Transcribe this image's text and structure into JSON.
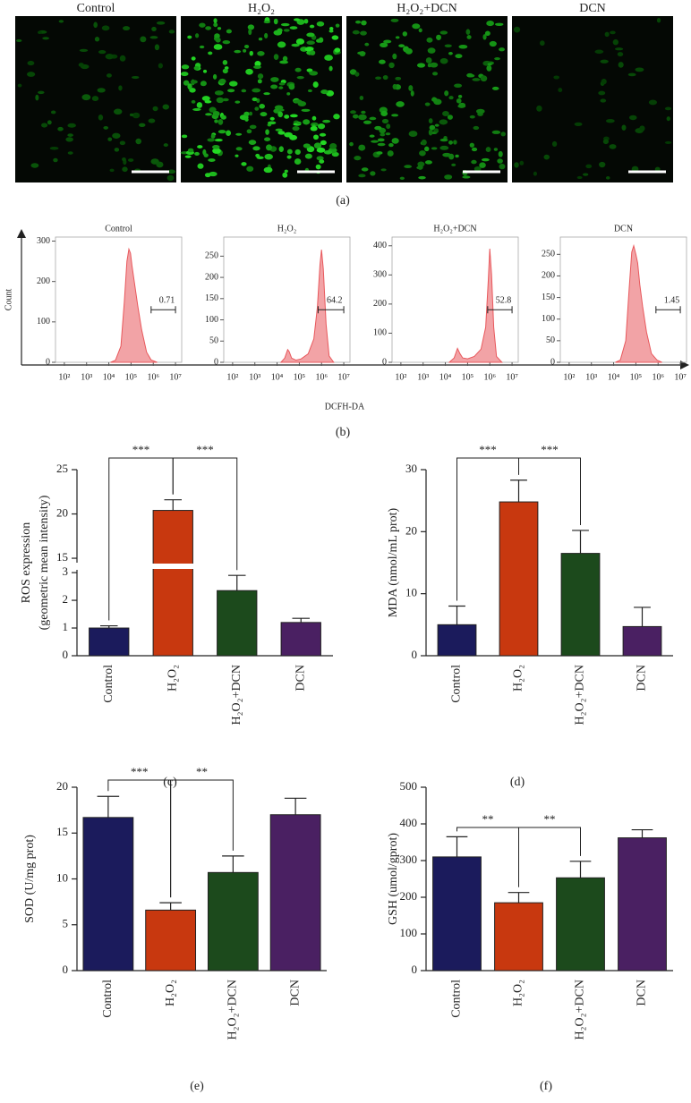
{
  "panel_labels": [
    "(a)",
    "(b)",
    "(c)",
    "(d)",
    "(e)",
    "(f)"
  ],
  "images": [
    {
      "title": "Control"
    },
    {
      "title": "H₂O₂"
    },
    {
      "title": "H₂O₂+DCN"
    },
    {
      "title": "DCN"
    }
  ],
  "flow_axes": {
    "y_label": "Count",
    "x_label": "DCFH-DA"
  },
  "chart_data": [
    {
      "type": "area",
      "title": "Control",
      "log_x": true,
      "xlim": [
        40,
        19000000
      ],
      "xticks": [
        {
          "value": 100,
          "label": "10²"
        },
        {
          "value": 1000,
          "label": "10³"
        },
        {
          "value": 10000,
          "label": "10⁴"
        },
        {
          "value": 100000,
          "label": "10⁵"
        },
        {
          "value": 1000000,
          "label": "10⁶"
        },
        {
          "value": 10000000,
          "label": "10⁷"
        }
      ],
      "ylim": [
        0,
        310
      ],
      "yticks": [
        0,
        100,
        200,
        300
      ],
      "color": "#e8585c",
      "x": [
        12000,
        20000,
        35000,
        50000,
        65000,
        80000,
        95000,
        110000,
        140000,
        200000,
        300000,
        500000,
        800000,
        1500000
      ],
      "values": [
        0,
        5,
        40,
        150,
        250,
        280,
        270,
        240,
        200,
        140,
        80,
        25,
        6,
        0
      ],
      "gate": [
        800000,
        10000000
      ],
      "gate_value": 0.71
    },
    {
      "type": "area",
      "title": "H₂O₂",
      "log_x": true,
      "xlim": [
        40,
        19000000
      ],
      "xticks": [
        {
          "value": 100,
          "label": "10²"
        },
        {
          "value": 1000,
          "label": "10³"
        },
        {
          "value": 10000,
          "label": "10⁴"
        },
        {
          "value": 100000,
          "label": "10⁵"
        },
        {
          "value": 1000000,
          "label": "10⁶"
        },
        {
          "value": 10000000,
          "label": "10⁷"
        }
      ],
      "ylim": [
        0,
        295
      ],
      "yticks": [
        0,
        50,
        100,
        150,
        200,
        250
      ],
      "color": "#e8585c",
      "x": [
        15000,
        22000,
        30000,
        35000,
        45000,
        70000,
        120000,
        250000,
        450000,
        650000,
        850000,
        1000000,
        1200000,
        1600000,
        2200000,
        3500000
      ],
      "values": [
        0,
        10,
        30,
        25,
        10,
        5,
        8,
        20,
        55,
        130,
        230,
        265,
        220,
        90,
        15,
        0
      ],
      "gate": [
        700000,
        10000000
      ],
      "gate_value": 64.2
    },
    {
      "type": "area",
      "title": "H₂O₂+DCN",
      "log_x": true,
      "xlim": [
        40,
        19000000
      ],
      "xticks": [
        {
          "value": 100,
          "label": "10²"
        },
        {
          "value": 1000,
          "label": "10³"
        },
        {
          "value": 10000,
          "label": "10⁴"
        },
        {
          "value": 100000,
          "label": "10⁵"
        },
        {
          "value": 1000000,
          "label": "10⁶"
        },
        {
          "value": 10000000,
          "label": "10⁷"
        }
      ],
      "ylim": [
        0,
        430
      ],
      "yticks": [
        0,
        100,
        200,
        300,
        400
      ],
      "color": "#e8585c",
      "x": [
        15000,
        25000,
        35000,
        45000,
        60000,
        100000,
        200000,
        400000,
        650000,
        850000,
        1000000,
        1200000,
        1500000,
        2000000,
        3500000
      ],
      "values": [
        0,
        15,
        48,
        30,
        15,
        12,
        20,
        45,
        120,
        280,
        390,
        300,
        120,
        20,
        0
      ],
      "gate": [
        800000,
        10000000
      ],
      "gate_value": 52.8
    },
    {
      "type": "area",
      "title": "DCN",
      "log_x": true,
      "xlim": [
        40,
        19000000
      ],
      "xticks": [
        {
          "value": 100,
          "label": "10²"
        },
        {
          "value": 1000,
          "label": "10³"
        },
        {
          "value": 10000,
          "label": "10⁴"
        },
        {
          "value": 100000,
          "label": "10⁵"
        },
        {
          "value": 1000000,
          "label": "10⁶"
        },
        {
          "value": 10000000,
          "label": "10⁷"
        }
      ],
      "ylim": [
        0,
        290
      ],
      "yticks": [
        0,
        50,
        100,
        150,
        200,
        250
      ],
      "color": "#e8585c",
      "x": [
        12000,
        20000,
        35000,
        50000,
        65000,
        80000,
        100000,
        120000,
        150000,
        200000,
        300000,
        500000,
        900000,
        1500000
      ],
      "values": [
        0,
        5,
        50,
        170,
        255,
        270,
        250,
        230,
        180,
        130,
        70,
        20,
        5,
        0
      ],
      "gate": [
        800000,
        10000000
      ],
      "gate_value": 1.45
    },
    {
      "type": "bar",
      "y_label": [
        "ROS expression",
        "(geometric mean intensity)"
      ],
      "categories": [
        "Control",
        "H₂O₂",
        "H₂O₂+DCN",
        "DCN"
      ],
      "values": [
        1.0,
        20.4,
        2.35,
        1.2
      ],
      "errors": [
        0.08,
        1.2,
        0.55,
        0.15
      ],
      "colors": [
        "#1b1b5c",
        "#c8380f",
        "#1c4a1c",
        "#4a2062"
      ],
      "ylim": [
        0,
        25
      ],
      "ybreak": [
        3.1,
        14.5
      ],
      "yticks": [
        0,
        1,
        2,
        3,
        15,
        20,
        25
      ],
      "significance": [
        {
          "pair": [
            "Control",
            "H₂O₂"
          ],
          "label": "***"
        },
        {
          "pair": [
            "H₂O₂",
            "H₂O₂+DCN"
          ],
          "label": "***"
        }
      ]
    },
    {
      "type": "bar",
      "y_label": [
        "MDA (nmol/mL prot)"
      ],
      "categories": [
        "Control",
        "H₂O₂",
        "H₂O₂+DCN",
        "DCN"
      ],
      "values": [
        5.0,
        24.8,
        16.5,
        4.7
      ],
      "errors": [
        3.0,
        3.5,
        3.7,
        3.1
      ],
      "colors": [
        "#1b1b5c",
        "#c8380f",
        "#1c4a1c",
        "#4a2062"
      ],
      "ylim": [
        0,
        30
      ],
      "yticks": [
        0,
        10,
        20,
        30
      ],
      "significance": [
        {
          "pair": [
            "Control",
            "H₂O₂"
          ],
          "label": "***"
        },
        {
          "pair": [
            "H₂O₂",
            "H₂O₂+DCN"
          ],
          "label": "***"
        }
      ]
    },
    {
      "type": "bar",
      "y_label": [
        "SOD (U/mg prot)"
      ],
      "categories": [
        "Control",
        "H₂O₂",
        "H₂O₂+DCN",
        "DCN"
      ],
      "values": [
        16.7,
        6.6,
        10.7,
        17.0
      ],
      "errors": [
        2.3,
        0.8,
        1.8,
        1.8
      ],
      "colors": [
        "#1b1b5c",
        "#c8380f",
        "#1c4a1c",
        "#4a2062"
      ],
      "ylim": [
        0,
        20
      ],
      "yticks": [
        0,
        5,
        10,
        15,
        20
      ],
      "significance": [
        {
          "pair": [
            "Control",
            "H₂O₂"
          ],
          "label": "***"
        },
        {
          "pair": [
            "H₂O₂",
            "H₂O₂+DCN"
          ],
          "label": "**"
        }
      ]
    },
    {
      "type": "bar",
      "y_label": [
        "GSH (umol/gprot)"
      ],
      "categories": [
        "Control",
        "H₂O₂",
        "H₂O₂+DCN",
        "DCN"
      ],
      "values": [
        310,
        185,
        253,
        362
      ],
      "errors": [
        55,
        28,
        45,
        22
      ],
      "colors": [
        "#1b1b5c",
        "#c8380f",
        "#1c4a1c",
        "#4a2062"
      ],
      "ylim": [
        0,
        500
      ],
      "yticks": [
        0,
        100,
        200,
        300,
        400,
        500
      ],
      "significance": [
        {
          "pair": [
            "Control",
            "H₂O₂"
          ],
          "label": "**"
        },
        {
          "pair": [
            "H₂O₂",
            "H₂O₂+DCN"
          ],
          "label": "**"
        }
      ]
    }
  ]
}
